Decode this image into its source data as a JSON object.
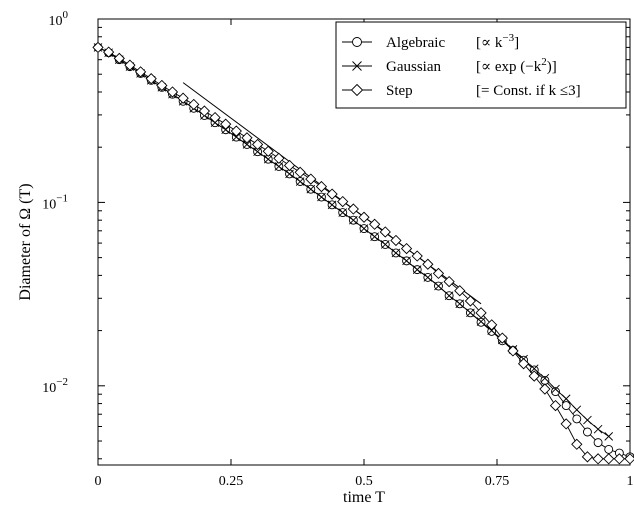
{
  "chart_data": {
    "type": "line",
    "xlabel": "time T",
    "ylabel": "Diameter of Ω (T)",
    "xlim": [
      0,
      1
    ],
    "ylim": [
      0.0037,
      1.0
    ],
    "yscale": "log",
    "grid": false,
    "legend_position": "top-right",
    "x_ticks": [
      {
        "value": 0,
        "label": "0"
      },
      {
        "value": 0.25,
        "label": "0.25"
      },
      {
        "value": 0.5,
        "label": "0.5"
      },
      {
        "value": 0.75,
        "label": "0.75"
      },
      {
        "value": 1,
        "label": "1"
      }
    ],
    "y_ticks": [
      {
        "value": 1,
        "base": "10",
        "exp": "0"
      },
      {
        "value": 0.1,
        "base": "10",
        "exp": "−1"
      },
      {
        "value": 0.01,
        "base": "10",
        "exp": "−2"
      }
    ],
    "series": [
      {
        "name": "Algebraic",
        "legend_note": "[∝ k",
        "legend_exp": "−3",
        "legend_tail": "]",
        "marker": "circle",
        "x": [
          0,
          0.02,
          0.04,
          0.06,
          0.08,
          0.1,
          0.12,
          0.14,
          0.16,
          0.18,
          0.2,
          0.22,
          0.24,
          0.26,
          0.28,
          0.3,
          0.32,
          0.34,
          0.36,
          0.38,
          0.4,
          0.42,
          0.44,
          0.46,
          0.48,
          0.5,
          0.52,
          0.54,
          0.56,
          0.58,
          0.6,
          0.62,
          0.64,
          0.66,
          0.68,
          0.7,
          0.72,
          0.74,
          0.76,
          0.78,
          0.8,
          0.82,
          0.84,
          0.86,
          0.88,
          0.9,
          0.92,
          0.94,
          0.96,
          0.98,
          1.0
        ],
        "y": [
          0.7,
          0.655,
          0.6,
          0.55,
          0.505,
          0.463,
          0.424,
          0.389,
          0.356,
          0.326,
          0.298,
          0.272,
          0.249,
          0.227,
          0.207,
          0.189,
          0.172,
          0.157,
          0.143,
          0.13,
          0.118,
          0.107,
          0.097,
          0.088,
          0.08,
          0.072,
          0.065,
          0.059,
          0.053,
          0.048,
          0.043,
          0.039,
          0.035,
          0.031,
          0.028,
          0.025,
          0.0222,
          0.0198,
          0.0176,
          0.0156,
          0.0138,
          0.0122,
          0.0107,
          0.0093,
          0.0078,
          0.0066,
          0.0056,
          0.0049,
          0.0045,
          0.0043,
          0.0041
        ]
      },
      {
        "name": "Gaussian",
        "legend_note": "[∝ exp (−k",
        "legend_exp": "2",
        "legend_tail": ")]",
        "marker": "x",
        "x": [
          0,
          0.02,
          0.04,
          0.06,
          0.08,
          0.1,
          0.12,
          0.14,
          0.16,
          0.18,
          0.2,
          0.22,
          0.24,
          0.26,
          0.28,
          0.3,
          0.32,
          0.34,
          0.36,
          0.38,
          0.4,
          0.42,
          0.44,
          0.46,
          0.48,
          0.5,
          0.52,
          0.54,
          0.56,
          0.58,
          0.6,
          0.62,
          0.64,
          0.66,
          0.68,
          0.7,
          0.72,
          0.74,
          0.76,
          0.78,
          0.8,
          0.82,
          0.84,
          0.86,
          0.88,
          0.9,
          0.92,
          0.94,
          0.96
        ],
        "y": [
          0.7,
          0.655,
          0.6,
          0.55,
          0.505,
          0.463,
          0.424,
          0.389,
          0.356,
          0.326,
          0.298,
          0.272,
          0.249,
          0.227,
          0.207,
          0.189,
          0.172,
          0.157,
          0.143,
          0.13,
          0.118,
          0.107,
          0.097,
          0.088,
          0.08,
          0.072,
          0.065,
          0.059,
          0.053,
          0.048,
          0.043,
          0.039,
          0.035,
          0.031,
          0.028,
          0.025,
          0.0224,
          0.02,
          0.0178,
          0.0158,
          0.014,
          0.0124,
          0.011,
          0.0096,
          0.0085,
          0.0074,
          0.0065,
          0.0058,
          0.0053
        ]
      },
      {
        "name": "Step",
        "legend_note": "[= Const. if k ≤3]",
        "legend_exp": "",
        "legend_tail": "",
        "marker": "diamond",
        "x": [
          0,
          0.02,
          0.04,
          0.06,
          0.08,
          0.1,
          0.12,
          0.14,
          0.16,
          0.18,
          0.2,
          0.22,
          0.24,
          0.26,
          0.28,
          0.3,
          0.32,
          0.34,
          0.36,
          0.38,
          0.4,
          0.42,
          0.44,
          0.46,
          0.48,
          0.5,
          0.52,
          0.54,
          0.56,
          0.58,
          0.6,
          0.62,
          0.64,
          0.66,
          0.68,
          0.7,
          0.72,
          0.74,
          0.76,
          0.78,
          0.8,
          0.82,
          0.84,
          0.86,
          0.88,
          0.9,
          0.92,
          0.94,
          0.96,
          0.98,
          1.0
        ],
        "y": [
          0.7,
          0.66,
          0.61,
          0.56,
          0.515,
          0.473,
          0.434,
          0.4,
          0.37,
          0.342,
          0.315,
          0.29,
          0.267,
          0.245,
          0.225,
          0.207,
          0.19,
          0.174,
          0.159,
          0.146,
          0.134,
          0.122,
          0.111,
          0.101,
          0.092,
          0.083,
          0.076,
          0.069,
          0.062,
          0.056,
          0.051,
          0.046,
          0.041,
          0.037,
          0.033,
          0.029,
          0.025,
          0.0215,
          0.0182,
          0.0155,
          0.0132,
          0.0113,
          0.0096,
          0.0078,
          0.0062,
          0.0048,
          0.0041,
          0.004,
          0.004,
          0.004,
          0.004
        ]
      }
    ],
    "reference_line": {
      "x": [
        0.16,
        0.72
      ],
      "y": [
        0.45,
        0.028
      ]
    }
  }
}
